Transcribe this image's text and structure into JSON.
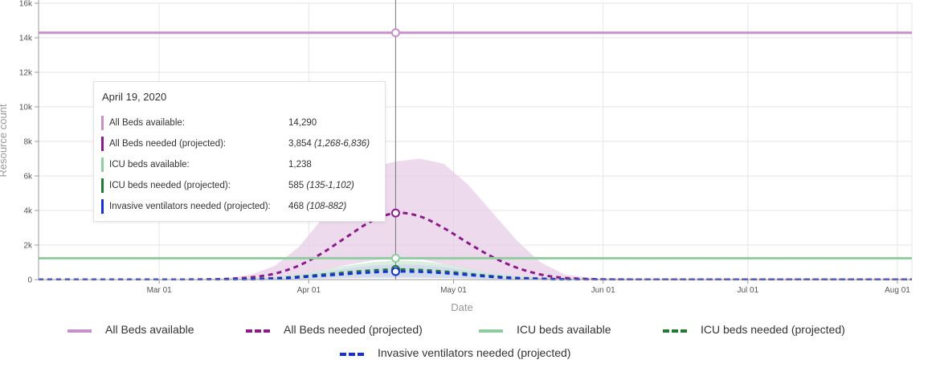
{
  "chart_data": {
    "type": "line",
    "title": "",
    "xlabel": "Date",
    "ylabel": "Resource count",
    "ylim": [
      0,
      16000
    ],
    "xlim": [
      "2020-02-05",
      "2020-08-04"
    ],
    "y_ticks": [
      0,
      2000,
      4000,
      6000,
      8000,
      10000,
      12000,
      14000,
      16000
    ],
    "y_tick_labels": [
      "0",
      "2k",
      "4k",
      "6k",
      "8k",
      "10k",
      "12k",
      "14k",
      "16k"
    ],
    "x_ticks": [
      "2020-03-01",
      "2020-04-01",
      "2020-05-01",
      "2020-06-01",
      "2020-07-01",
      "2020-08-01"
    ],
    "x_tick_labels": [
      "Mar 01",
      "Apr 01",
      "May 01",
      "Jun 01",
      "Jul 01",
      "Aug 01"
    ],
    "grid": true,
    "legend_position": "bottom",
    "series": [
      {
        "name": "All Beds available",
        "color": "#c88fc8",
        "style": "solid",
        "x": [
          "2020-02-05",
          "2020-08-04"
        ],
        "y": [
          14290,
          14290
        ]
      },
      {
        "name": "All Beds needed (projected)",
        "color": "#8b1a8b",
        "band_color": "#e7cde7",
        "style": "dashed",
        "x": [
          "2020-02-05",
          "2020-03-01",
          "2020-03-10",
          "2020-03-15",
          "2020-03-20",
          "2020-03-25",
          "2020-03-30",
          "2020-04-04",
          "2020-04-09",
          "2020-04-14",
          "2020-04-19",
          "2020-04-24",
          "2020-04-29",
          "2020-05-04",
          "2020-05-09",
          "2020-05-14",
          "2020-05-19",
          "2020-05-24",
          "2020-05-31",
          "2020-06-10",
          "2020-07-01",
          "2020-08-04"
        ],
        "y": [
          0,
          0,
          10,
          40,
          130,
          350,
          820,
          1570,
          2500,
          3380,
          3854,
          3660,
          2980,
          2120,
          1320,
          700,
          300,
          100,
          20,
          0,
          0,
          0
        ],
        "y_low": [
          0,
          0,
          0,
          10,
          40,
          110,
          260,
          520,
          850,
          1100,
          1268,
          1200,
          900,
          600,
          320,
          150,
          60,
          20,
          0,
          0,
          0,
          0
        ],
        "y_high": [
          0,
          0,
          20,
          80,
          280,
          800,
          1900,
          3600,
          5300,
          6500,
          6836,
          7000,
          6700,
          5500,
          3900,
          2300,
          1000,
          300,
          50,
          0,
          0,
          0
        ]
      },
      {
        "name": "ICU beds available",
        "color": "#8fcc9f",
        "style": "solid",
        "x": [
          "2020-02-05",
          "2020-08-04"
        ],
        "y": [
          1238,
          1238
        ]
      },
      {
        "name": "ICU beds needed (projected)",
        "color": "#1e7d32",
        "band_color": "#cfe7d6",
        "style": "dashed",
        "x": [
          "2020-02-05",
          "2020-03-01",
          "2020-03-15",
          "2020-03-25",
          "2020-04-01",
          "2020-04-09",
          "2020-04-14",
          "2020-04-19",
          "2020-04-24",
          "2020-04-29",
          "2020-05-04",
          "2020-05-09",
          "2020-05-14",
          "2020-05-24",
          "2020-06-01",
          "2020-08-04"
        ],
        "y": [
          0,
          0,
          10,
          80,
          220,
          420,
          530,
          585,
          560,
          470,
          330,
          200,
          100,
          20,
          0,
          0
        ],
        "y_low": [
          0,
          0,
          0,
          20,
          60,
          110,
          130,
          135,
          130,
          110,
          80,
          50,
          25,
          5,
          0,
          0
        ],
        "y_high": [
          0,
          0,
          20,
          150,
          420,
          800,
          1000,
          1102,
          1060,
          900,
          650,
          400,
          200,
          40,
          0,
          0
        ]
      },
      {
        "name": "Invasive ventilators needed (projected)",
        "color": "#1530d6",
        "band_color": "#cfd6ef",
        "style": "dashed",
        "x": [
          "2020-02-05",
          "2020-03-01",
          "2020-03-15",
          "2020-03-25",
          "2020-04-01",
          "2020-04-09",
          "2020-04-14",
          "2020-04-19",
          "2020-04-24",
          "2020-04-29",
          "2020-05-04",
          "2020-05-09",
          "2020-05-14",
          "2020-05-24",
          "2020-06-01",
          "2020-08-04"
        ],
        "y": [
          0,
          0,
          8,
          60,
          170,
          330,
          420,
          468,
          450,
          380,
          270,
          160,
          80,
          15,
          0,
          0
        ],
        "y_low": [
          0,
          0,
          0,
          15,
          45,
          90,
          105,
          108,
          105,
          90,
          65,
          40,
          20,
          4,
          0,
          0
        ],
        "y_high": [
          0,
          0,
          15,
          120,
          330,
          640,
          800,
          882,
          850,
          720,
          520,
          320,
          160,
          30,
          0,
          0
        ]
      }
    ],
    "crosshair_date": "2020-04-19",
    "tooltip": {
      "date": "April 19, 2020",
      "rows": [
        {
          "label": "All Beds available:",
          "value": "14,290",
          "range": "",
          "color": "#c88fc8"
        },
        {
          "label": "All Beds needed (projected):",
          "value": "3,854",
          "range": "(1,268-6,836)",
          "color": "#8b1a8b"
        },
        {
          "label": "ICU beds available:",
          "value": "1,238",
          "range": "",
          "color": "#8fcc9f"
        },
        {
          "label": "ICU beds needed (projected):",
          "value": "585",
          "range": "(135-1,102)",
          "color": "#1e7d32"
        },
        {
          "label": "Invasive ventilators needed (projected):",
          "value": "468",
          "range": "(108-882)",
          "color": "#1530d6"
        }
      ]
    }
  }
}
